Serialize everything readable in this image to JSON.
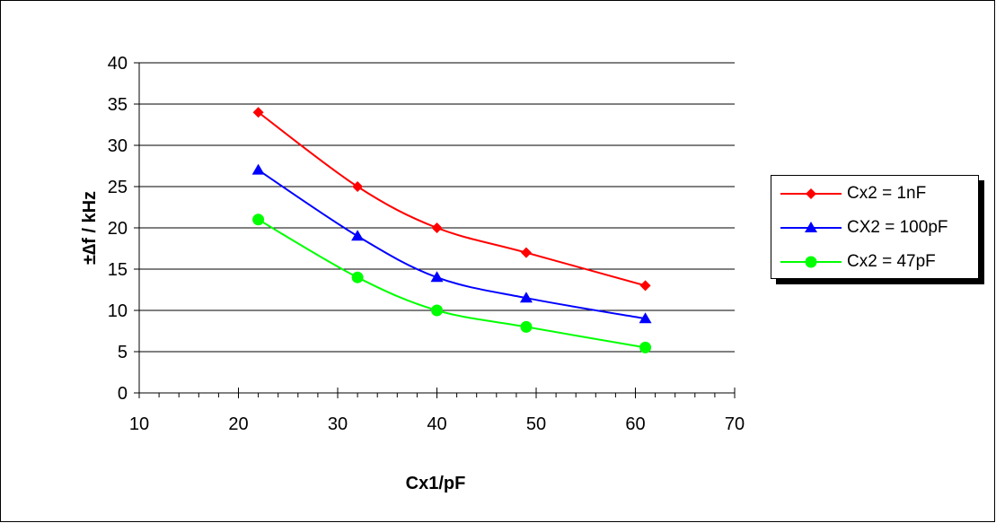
{
  "chart_data": {
    "type": "line",
    "xlabel": "Cx1/pF",
    "ylabel": "±∆f / kHz",
    "xlim": [
      10,
      70
    ],
    "ylim": [
      0,
      40
    ],
    "x_ticks": [
      "10",
      "20",
      "30",
      "40",
      "50",
      "60",
      "70"
    ],
    "y_ticks": [
      "0",
      "5",
      "10",
      "15",
      "20",
      "25",
      "30",
      "35",
      "40"
    ],
    "grid": "horizontal",
    "legend_position": "right",
    "x": [
      22,
      32,
      40,
      49,
      61
    ],
    "series": [
      {
        "name": "Cx2 = 1nF",
        "color": "#ff0000",
        "marker": "diamond",
        "values": [
          34,
          25,
          20,
          17,
          13
        ]
      },
      {
        "name": "CX2 = 100pF",
        "color": "#0000ff",
        "marker": "triangle",
        "values": [
          27,
          19,
          14,
          11.5,
          9
        ]
      },
      {
        "name": "Cx2 = 47pF",
        "color": "#00ff00",
        "marker": "circle",
        "values": [
          21,
          14,
          10,
          8,
          5.5
        ]
      }
    ]
  }
}
